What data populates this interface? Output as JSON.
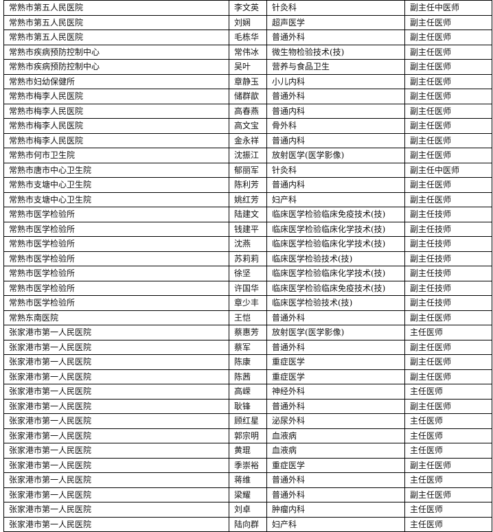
{
  "rows": [
    [
      "常熟市第五人民医院",
      "李文英",
      "针灸科",
      "副主任中医师"
    ],
    [
      "常熟市第五人民医院",
      "刘娴",
      "超声医学",
      "副主任医师"
    ],
    [
      "常熟市第五人民医院",
      "毛栋华",
      "普通外科",
      "副主任医师"
    ],
    [
      "常熟市疾病预防控制中心",
      "常伟冰",
      "微生物检验技术(技)",
      "副主任医师"
    ],
    [
      "常熟市疾病预防控制中心",
      "吴叶",
      "营养与食品卫生",
      "副主任医师"
    ],
    [
      "常熟市妇幼保健所",
      "章静玉",
      "小儿内科",
      "副主任医师"
    ],
    [
      "常熟市梅李人民医院",
      "储群歆",
      "普通外科",
      "副主任医师"
    ],
    [
      "常熟市梅李人民医院",
      "高春燕",
      "普通内科",
      "副主任医师"
    ],
    [
      "常熟市梅李人民医院",
      "高文宝",
      "骨外科",
      "副主任医师"
    ],
    [
      "常熟市梅李人民医院",
      "金永祥",
      "普通内科",
      "副主任医师"
    ],
    [
      "常熟市何市卫生院",
      "沈振江",
      "放射医学(医学影像)",
      "副主任医师"
    ],
    [
      "常熟市唐市中心卫生院",
      "郁丽军",
      "针灸科",
      "副主任中医师"
    ],
    [
      "常熟市支塘中心卫生院",
      "陈利芳",
      "普通内科",
      "副主任医师"
    ],
    [
      "常熟市支塘中心卫生院",
      "姚红芳",
      "妇产科",
      "副主任医师"
    ],
    [
      "常熟市医学检验所",
      "陆建文",
      "临床医学检验临床免疫技术(技)",
      "副主任技师"
    ],
    [
      "常熟市医学检验所",
      "钱建平",
      "临床医学检验临床化学技术(技)",
      "副主任技师"
    ],
    [
      "常熟市医学检验所",
      "沈燕",
      "临床医学检验临床化学技术(技)",
      "副主任技师"
    ],
    [
      "常熟市医学检验所",
      "苏莉莉",
      "临床医学检验技术(技)",
      "副主任技师"
    ],
    [
      "常熟市医学检验所",
      "徐坚",
      "临床医学检验临床化学技术(技)",
      "副主任技师"
    ],
    [
      "常熟市医学检验所",
      "许国华",
      "临床医学检验临床免疫技术(技)",
      "副主任技师"
    ],
    [
      "常熟市医学检验所",
      "章少丰",
      "临床医学检验技术(技)",
      "副主任技师"
    ],
    [
      "常熟东南医院",
      "王恺",
      "普通外科",
      "副主任医师"
    ],
    [
      "张家港市第一人民医院",
      "蔡惠芳",
      "放射医学(医学影像)",
      "主任医师"
    ],
    [
      "张家港市第一人民医院",
      "蔡军",
      "普通外科",
      "副主任医师"
    ],
    [
      "张家港市第一人民医院",
      "陈康",
      "重症医学",
      "副主任医师"
    ],
    [
      "张家港市第一人民医院",
      "陈茜",
      "重症医学",
      "副主任医师"
    ],
    [
      "张家港市第一人民医院",
      "高嵘",
      "神经外科",
      "主任医师"
    ],
    [
      "张家港市第一人民医院",
      "耿锋",
      "普通外科",
      "副主任医师"
    ],
    [
      "张家港市第一人民医院",
      "顾红星",
      "泌尿外科",
      "主任医师"
    ],
    [
      "张家港市第一人民医院",
      "郭宗明",
      "血液病",
      "主任医师"
    ],
    [
      "张家港市第一人民医院",
      "黄琨",
      "血液病",
      "主任医师"
    ],
    [
      "张家港市第一人民医院",
      "季崇裕",
      "重症医学",
      "副主任医师"
    ],
    [
      "张家港市第一人民医院",
      "蒋维",
      "普通外科",
      "主任医师"
    ],
    [
      "张家港市第一人民医院",
      "梁耀",
      "普通外科",
      "副主任医师"
    ],
    [
      "张家港市第一人民医院",
      "刘卓",
      "肿瘤内科",
      "主任医师"
    ],
    [
      "张家港市第一人民医院",
      "陆向群",
      "妇产科",
      "主任医师"
    ]
  ]
}
